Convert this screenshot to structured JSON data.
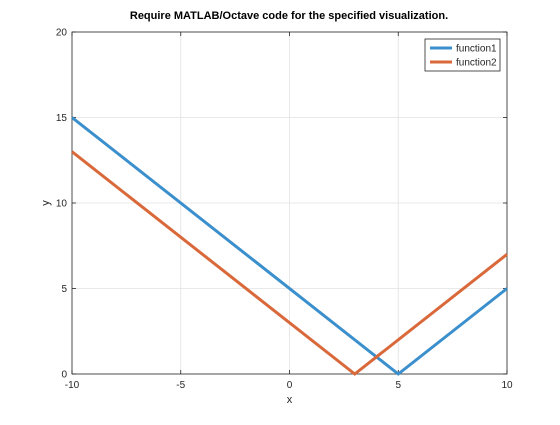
{
  "chart_data": {
    "type": "line",
    "title": "Require MATLAB/Octave code for the specified visualization.",
    "xlabel": "x",
    "ylabel": "y",
    "xlim": [
      -10,
      10
    ],
    "ylim": [
      0,
      20
    ],
    "xticks": [
      -10,
      -5,
      0,
      5,
      10
    ],
    "yticks": [
      0,
      5,
      10,
      15,
      20
    ],
    "grid": true,
    "legend_position": "top-right",
    "series": [
      {
        "name": "function1",
        "color": "#3A8FCC",
        "x": [
          -10,
          5,
          10
        ],
        "y": [
          15,
          0,
          5
        ]
      },
      {
        "name": "function2",
        "color": "#D9693A",
        "x": [
          -10,
          3,
          10
        ],
        "y": [
          13,
          0,
          7
        ]
      }
    ]
  }
}
